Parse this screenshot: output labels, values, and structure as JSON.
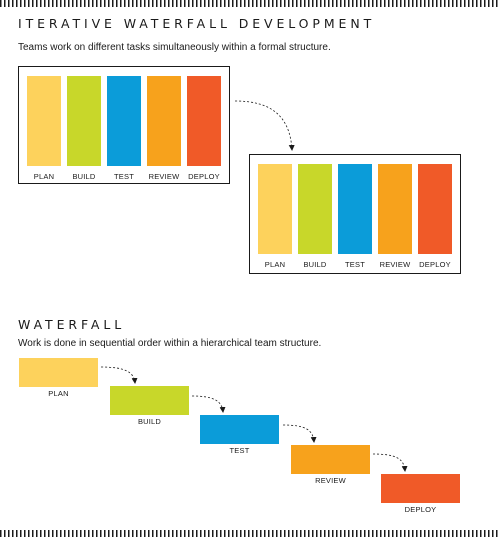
{
  "iterative": {
    "title": "ITERATIVE WATERFALL DEVELOPMENT",
    "subtitle": "Teams work on different tasks simultaneously within a formal structure."
  },
  "waterfall": {
    "title": "WATERFALL",
    "subtitle": "Work is done in sequential order within a hierarchical team structure."
  },
  "phases": [
    {
      "label": "PLAN",
      "color": "#fdd25c"
    },
    {
      "label": "BUILD",
      "color": "#c8d72a"
    },
    {
      "label": "TEST",
      "color": "#0b9cd9"
    },
    {
      "label": "REVIEW",
      "color": "#f7a21c"
    },
    {
      "label": "DEPLOY",
      "color": "#f05a28"
    }
  ],
  "colors": {
    "plan": "#fdd25c",
    "build": "#c8d72a",
    "test": "#0b9cd9",
    "review": "#f7a21c",
    "deploy": "#f05a28",
    "ink": "#1a1a1a"
  }
}
